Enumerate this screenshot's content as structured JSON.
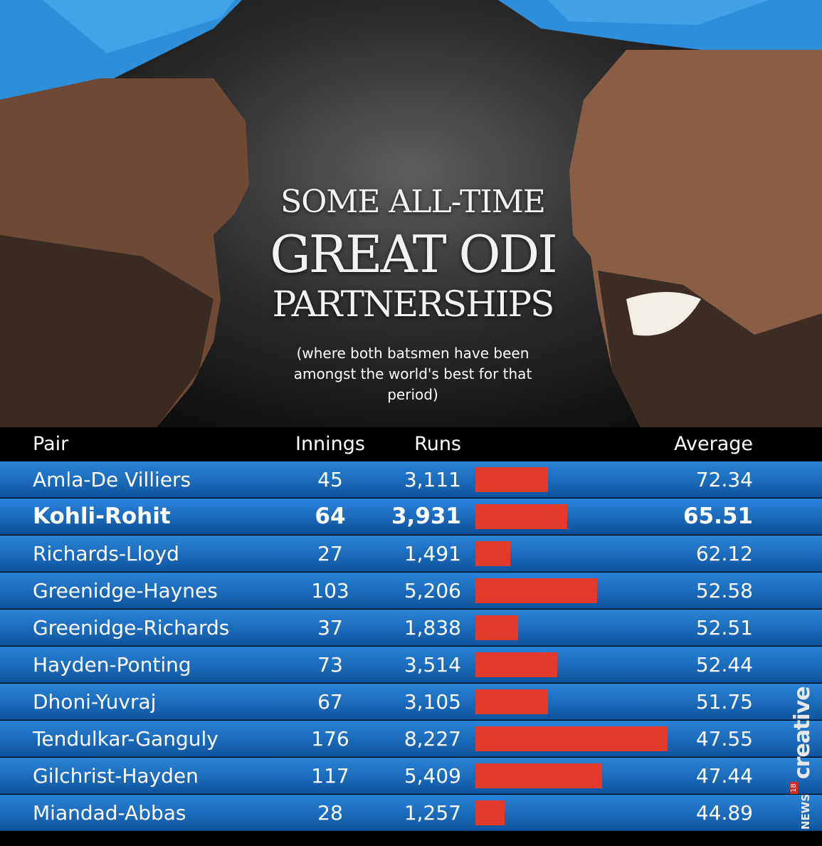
{
  "title": {
    "line1": "SOME ALL-TIME",
    "line2": "GREAT ODI",
    "line3": "PARTNERSHIPS"
  },
  "subtitle": "(where both batsmen have been amongst the world's best for that period)",
  "columns": {
    "pair": "Pair",
    "innings": "Innings",
    "runs": "Runs",
    "average": "Average"
  },
  "brand": {
    "news": "NEWS",
    "num": "18",
    "creative": "creative"
  },
  "colors": {
    "bar": "#e33b2b",
    "row": "#1e6fc0",
    "header_bg": "#000000"
  },
  "chart_data": {
    "type": "table",
    "bar_series": "Runs",
    "rows": [
      {
        "pair": "Amla-De Villiers",
        "innings": "45",
        "runs": "3,111",
        "runs_value": 3111,
        "average": "72.34",
        "highlight": false
      },
      {
        "pair": "Kohli-Rohit",
        "innings": "64",
        "runs": "3,931",
        "runs_value": 3931,
        "average": "65.51",
        "highlight": true
      },
      {
        "pair": "Richards-Lloyd",
        "innings": "27",
        "runs": "1,491",
        "runs_value": 1491,
        "average": "62.12",
        "highlight": false
      },
      {
        "pair": "Greenidge-Haynes",
        "innings": "103",
        "runs": "5,206",
        "runs_value": 5206,
        "average": "52.58",
        "highlight": false
      },
      {
        "pair": "Greenidge-Richards",
        "innings": "37",
        "runs": "1,838",
        "runs_value": 1838,
        "average": "52.51",
        "highlight": false
      },
      {
        "pair": "Hayden-Ponting",
        "innings": "73",
        "runs": "3,514",
        "runs_value": 3514,
        "average": "52.44",
        "highlight": false
      },
      {
        "pair": "Dhoni-Yuvraj",
        "innings": "67",
        "runs": "3,105",
        "runs_value": 3105,
        "average": "51.75",
        "highlight": false
      },
      {
        "pair": "Tendulkar-Ganguly",
        "innings": "176",
        "runs": "8,227",
        "runs_value": 8227,
        "average": "47.55",
        "highlight": false
      },
      {
        "pair": "Gilchrist-Hayden",
        "innings": "117",
        "runs": "5,409",
        "runs_value": 5409,
        "average": "47.44",
        "highlight": false
      },
      {
        "pair": "Miandad-Abbas",
        "innings": "28",
        "runs": "1,257",
        "runs_value": 1257,
        "average": "44.89",
        "highlight": false
      }
    ]
  }
}
